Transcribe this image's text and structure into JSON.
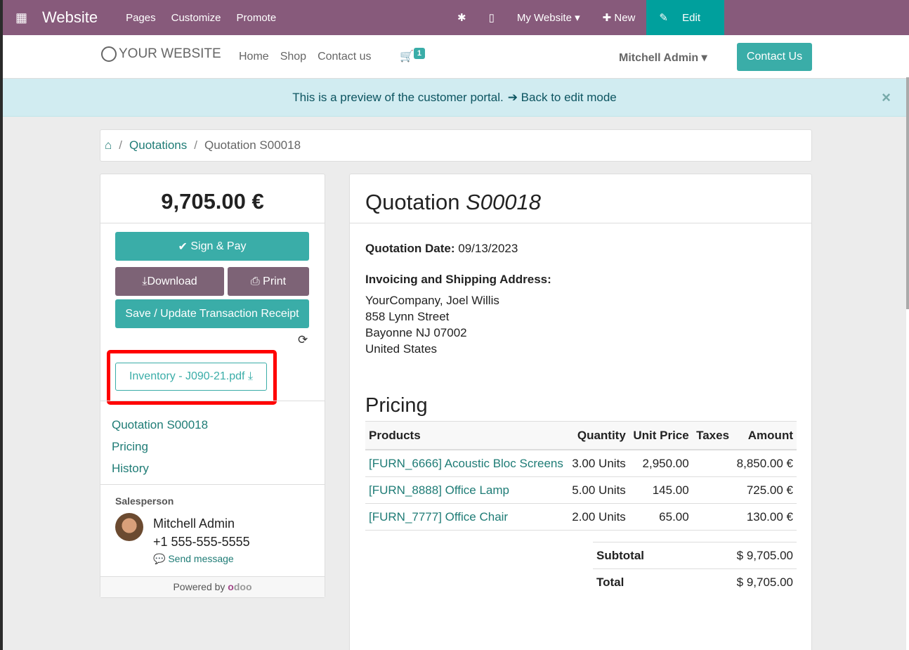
{
  "topbar": {
    "app": "Website",
    "menu": [
      "Pages",
      "Customize",
      "Promote"
    ],
    "website": "My Website",
    "new": "New",
    "edit": "Edit"
  },
  "nav": {
    "logo": "YOUR WEBSITE",
    "links": [
      "Home",
      "Shop",
      "Contact us"
    ],
    "cart_count": "1",
    "user": "Mitchell Admin",
    "contact": "Contact Us"
  },
  "banner": {
    "text": "This is a preview of the customer portal.",
    "link": "Back to edit mode"
  },
  "breadcrumb": {
    "items": [
      "Quotations",
      "Quotation S00018"
    ]
  },
  "sidebar": {
    "total": "9,705.00 €",
    "sign": "Sign & Pay",
    "download": "Download",
    "print": "Print",
    "save": "Save / Update Transaction Receipt",
    "attachment": "Inventory - J090-21.pdf",
    "toc": [
      "Quotation S00018",
      "Pricing",
      "History"
    ],
    "salesperson_label": "Salesperson",
    "salesperson": "Mitchell Admin",
    "phone": "+1 555-555-5555",
    "send": "Send message",
    "powered": "Powered by",
    "odoo": "odoo"
  },
  "main": {
    "title": "Quotation",
    "number": "S00018",
    "date_label": "Quotation Date:",
    "date": "09/13/2023",
    "address_label": "Invoicing and Shipping Address:",
    "address": [
      "YourCompany, Joel Willis",
      "858 Lynn Street",
      "Bayonne NJ 07002",
      "United States"
    ],
    "pricing": "Pricing",
    "columns": [
      "Products",
      "Quantity",
      "Unit Price",
      "Taxes",
      "Amount"
    ],
    "rows": [
      [
        "[FURN_6666] Acoustic Bloc Screens",
        "3.00 Units",
        "2,950.00",
        "",
        "8,850.00 €"
      ],
      [
        "[FURN_8888] Office Lamp",
        "5.00 Units",
        "145.00",
        "",
        "725.00 €"
      ],
      [
        "[FURN_7777] Office Chair",
        "2.00 Units",
        "65.00",
        "",
        "130.00 €"
      ]
    ],
    "subtotal_label": "Subtotal",
    "subtotal": "$ 9,705.00",
    "total_label": "Total",
    "total": "$ 9,705.00"
  },
  "colors": {
    "brand": "#875A7B",
    "accent": "#3aada8",
    "highlight": "#ff0000"
  }
}
